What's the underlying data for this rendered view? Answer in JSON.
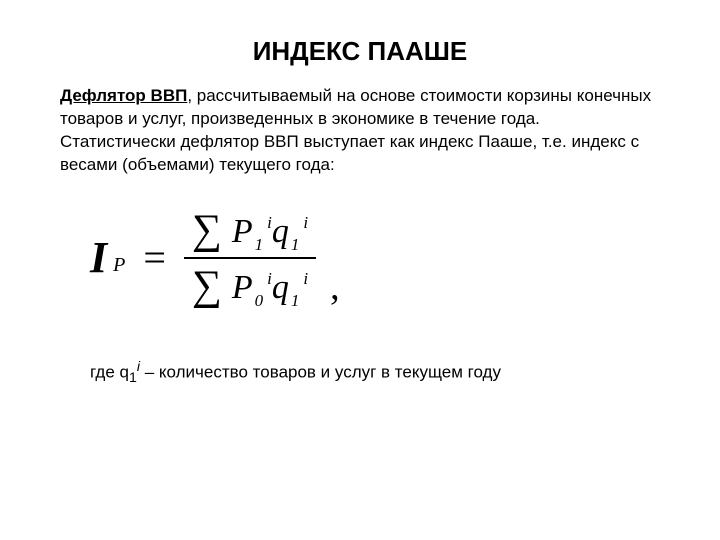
{
  "title": "ИНДЕКС ПААШЕ",
  "lead_bold": "Дефлятор ВВП",
  "body_rest": ", рассчитываемый на основе стоимости корзины конечных товаров и услуг, произведенных в экономике в течение года. Статистически дефлятор ВВП выступает как индекс Пааше, т.е. индекс с весами (объемами) текущего года:",
  "formula": {
    "lhs_base": "I",
    "lhs_sub": "P",
    "eq": "=",
    "sigma": "∑",
    "num": {
      "p_base": "P",
      "p_sub": "1",
      "p_sup": "i",
      "q_base": "q",
      "q_sub": "1",
      "q_sup": "i"
    },
    "den": {
      "p_base": "P",
      "p_sub": "0",
      "p_sup": "i",
      "q_base": "q",
      "q_sub": "1",
      "q_sup": "i"
    },
    "trail": ","
  },
  "footer_prefix": "где   q",
  "footer_sub": "1",
  "footer_sup": "i",
  "footer_rest": " – количество товаров и услуг в текущем году"
}
